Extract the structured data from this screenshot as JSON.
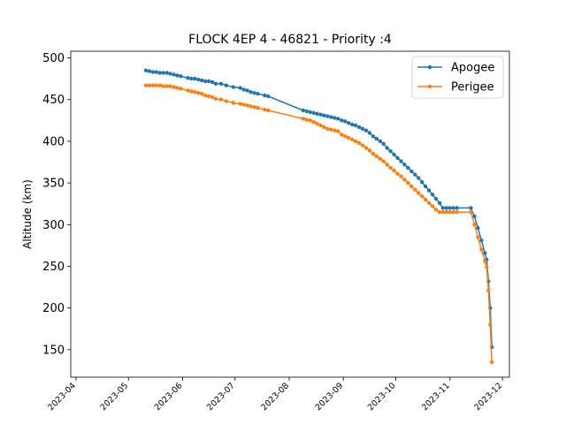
{
  "chart_data": {
    "type": "line",
    "title": "FLOCK 4EP 4 - 46821 - Priority :4",
    "xlabel": "",
    "ylabel": "Altitude (km)",
    "x_ticks": [
      "2023-04",
      "2023-05",
      "2023-06",
      "2023-07",
      "2023-08",
      "2023-09",
      "2023-10",
      "2023-11",
      "2023-12"
    ],
    "xlim_days": [
      -3,
      248
    ],
    "ylim": [
      117,
      508
    ],
    "y_ticks": [
      150,
      200,
      250,
      300,
      350,
      400,
      450,
      500
    ],
    "legend_position": "top-right",
    "series": [
      {
        "name": "Apogee",
        "color": "#1f77b4",
        "x_days": [
          40,
          42,
          44,
          46,
          48,
          50,
          52,
          54,
          56,
          58,
          60,
          64,
          66,
          68,
          70,
          72,
          74,
          76,
          78,
          80,
          83,
          86,
          90,
          94,
          96,
          98,
          100,
          102,
          104,
          108,
          110,
          130,
          132,
          134,
          136,
          138,
          140,
          142,
          144,
          146,
          148,
          150,
          152,
          154,
          156,
          158,
          160,
          162,
          164,
          166,
          168,
          170,
          172,
          174,
          176,
          178,
          180,
          182,
          184,
          186,
          188,
          190,
          192,
          194,
          196,
          198,
          200,
          202,
          204,
          206,
          208,
          210,
          212,
          214,
          216,
          218,
          226,
          228,
          230,
          232,
          234,
          235,
          236,
          237,
          238
        ],
        "values": [
          485,
          484,
          483,
          483,
          482,
          482,
          482,
          481,
          480,
          479,
          478,
          476,
          475,
          475,
          474,
          473,
          472,
          472,
          471,
          469,
          469,
          467,
          465,
          464,
          462,
          461,
          459,
          458,
          457,
          455,
          454,
          437,
          436,
          435,
          434,
          433,
          432,
          431,
          430,
          429,
          428,
          427,
          425,
          424,
          422,
          420,
          419,
          417,
          415,
          413,
          410,
          406,
          403,
          400,
          397,
          392,
          388,
          384,
          380,
          376,
          372,
          368,
          364,
          360,
          356,
          351,
          346,
          341,
          336,
          331,
          326,
          320,
          320,
          320,
          320,
          320,
          320,
          310,
          296,
          281,
          266,
          258,
          232,
          200,
          153
        ]
      },
      {
        "name": "Perigee",
        "color": "#ff7f0e",
        "x_days": [
          40,
          42,
          44,
          46,
          48,
          50,
          52,
          54,
          56,
          58,
          60,
          64,
          66,
          68,
          70,
          72,
          74,
          76,
          78,
          80,
          83,
          86,
          90,
          94,
          96,
          98,
          100,
          102,
          104,
          108,
          110,
          130,
          132,
          134,
          136,
          138,
          140,
          142,
          144,
          146,
          148,
          150,
          152,
          154,
          156,
          158,
          160,
          162,
          164,
          166,
          168,
          170,
          172,
          174,
          176,
          178,
          180,
          182,
          184,
          186,
          188,
          190,
          192,
          194,
          196,
          198,
          200,
          202,
          204,
          206,
          208,
          210,
          212,
          214,
          216,
          218,
          226,
          228,
          230,
          232,
          234,
          235,
          236,
          237,
          238
        ],
        "values": [
          467,
          467,
          467,
          467,
          467,
          466,
          466,
          466,
          465,
          464,
          463,
          461,
          460,
          459,
          458,
          457,
          455,
          454,
          453,
          451,
          450,
          448,
          446,
          445,
          444,
          443,
          442,
          441,
          440,
          438,
          437,
          427,
          426,
          425,
          423,
          421,
          419,
          417,
          415,
          414,
          413,
          412,
          408,
          406,
          404,
          402,
          400,
          398,
          395,
          392,
          389,
          385,
          382,
          379,
          376,
          372,
          368,
          365,
          361,
          358,
          354,
          350,
          346,
          342,
          338,
          334,
          330,
          326,
          322,
          318,
          315,
          315,
          315,
          315,
          315,
          315,
          315,
          300,
          285,
          270,
          256,
          249,
          221,
          180,
          135
        ]
      }
    ]
  }
}
